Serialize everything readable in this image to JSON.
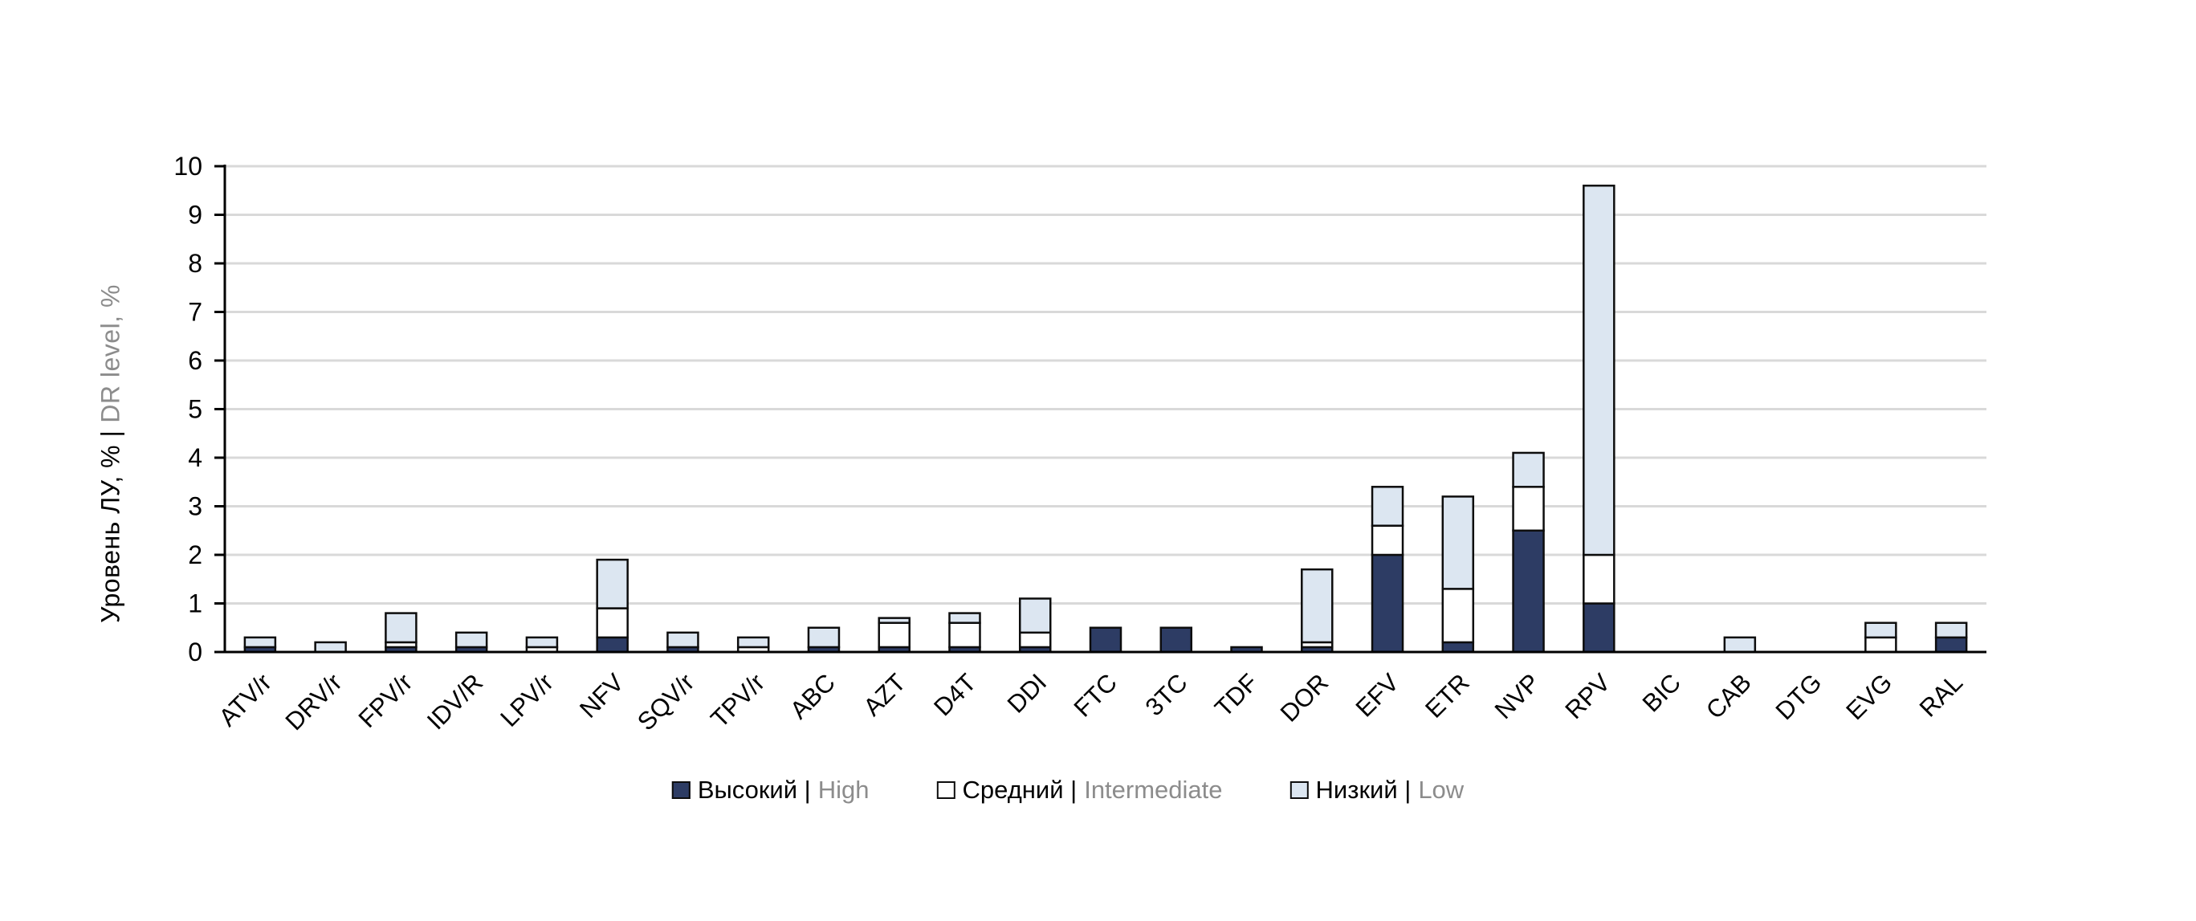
{
  "page": {
    "background": "#ffffff"
  },
  "colors": {
    "grid": "#d9d9d9",
    "axis": "#000000",
    "bar_border": "#0d0d0d",
    "tick_label": "#000000",
    "secondary_text": "#8c8c8c",
    "high": "#2d3c64",
    "intermediate": "#ffffff",
    "low": "#dce6f1"
  },
  "chart_data": {
    "type": "bar",
    "stacked": true,
    "title": "",
    "ylabel_ru": "Уровень ЛУ, % |",
    "ylabel_en": "DR level, %",
    "ylim": [
      0,
      10
    ],
    "y_ticks": [
      0,
      1,
      2,
      3,
      4,
      5,
      6,
      7,
      8,
      9,
      10
    ],
    "grid": true,
    "legend_position": "bottom",
    "categories": [
      "ATV/r",
      "DRV/r",
      "FPV/r",
      "IDV/R",
      "LPV/r",
      "NFV",
      "SQV/r",
      "TPV/r",
      "ABC",
      "AZT",
      "D4T",
      "DDI",
      "FTC",
      "3TC",
      "TDF",
      "DOR",
      "EFV",
      "ETR",
      "NVP",
      "RPV",
      "BIC",
      "CAB",
      "DTG",
      "EVG",
      "RAL"
    ],
    "series": [
      {
        "key": "high",
        "label_ru": "Высокий |",
        "label_en": "High",
        "color": "#2d3c64",
        "values": [
          0.1,
          0,
          0.1,
          0.1,
          0,
          0.3,
          0.1,
          0,
          0.1,
          0.1,
          0.1,
          0.1,
          0.5,
          0.5,
          0.1,
          0.1,
          2.0,
          0.2,
          2.5,
          1.0,
          0,
          0,
          0,
          0,
          0.3
        ]
      },
      {
        "key": "intermediate",
        "label_ru": "Средний |",
        "label_en": "Intermediate",
        "color": "#ffffff",
        "values": [
          0,
          0,
          0.1,
          0,
          0.1,
          0.6,
          0,
          0.1,
          0,
          0.5,
          0.5,
          0.3,
          0,
          0,
          0,
          0.1,
          0.6,
          1.1,
          0.9,
          1.0,
          0,
          0,
          0,
          0.3,
          0
        ]
      },
      {
        "key": "low",
        "label_ru": "Низкий |",
        "label_en": "Low",
        "color": "#dce6f1",
        "values": [
          0.2,
          0.2,
          0.6,
          0.3,
          0.2,
          1.0,
          0.3,
          0.2,
          0.4,
          0.1,
          0.2,
          0.7,
          0,
          0,
          0,
          1.5,
          0.8,
          1.9,
          0.7,
          7.6,
          0,
          0.3,
          0,
          0.3,
          0.3
        ]
      }
    ]
  }
}
